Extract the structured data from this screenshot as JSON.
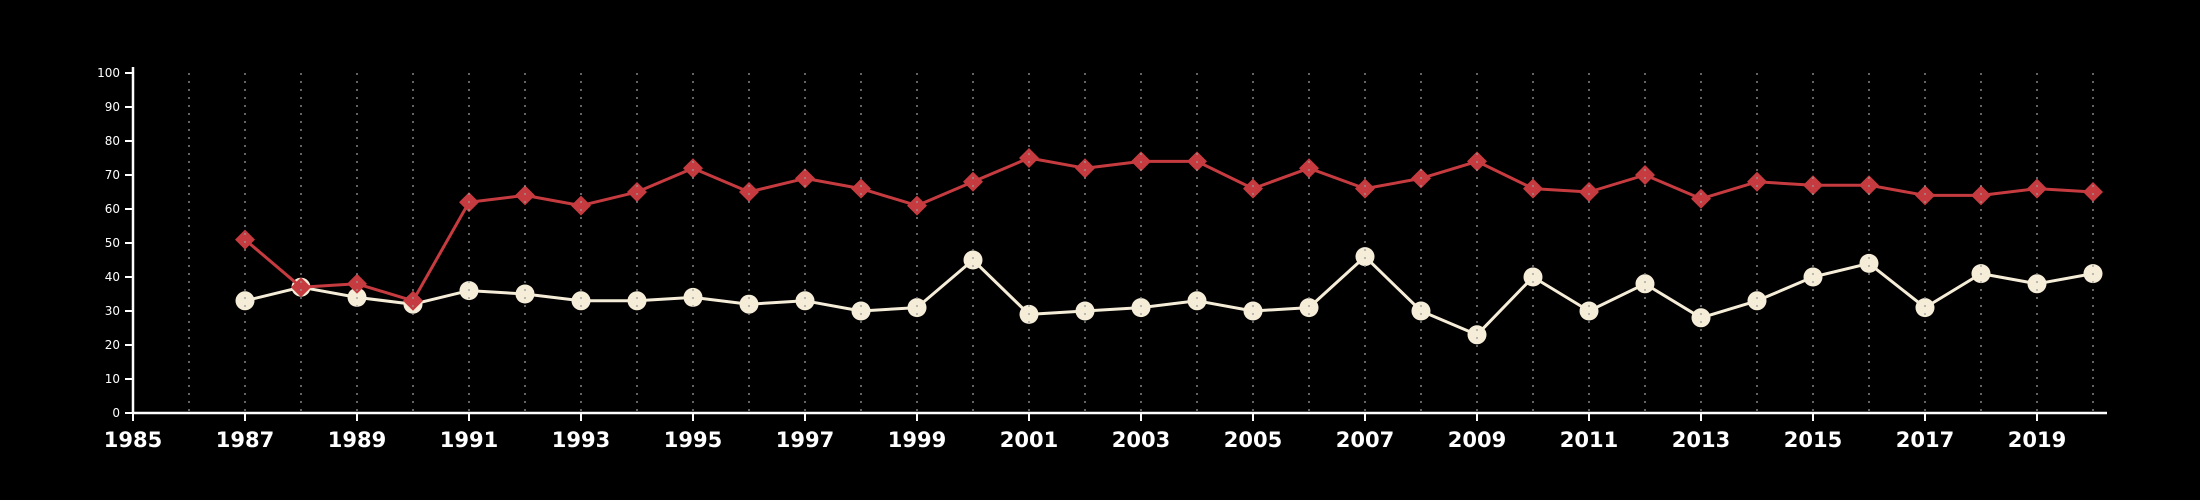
{
  "chart_data": {
    "type": "line",
    "title": "",
    "xlabel": "",
    "ylabel": "",
    "x_years": [
      1987,
      1988,
      1989,
      1990,
      1991,
      1992,
      1993,
      1994,
      1995,
      1996,
      1997,
      1998,
      1999,
      2000,
      2001,
      2002,
      2003,
      2004,
      2005,
      2006,
      2007,
      2008,
      2009,
      2010,
      2011,
      2012,
      2013,
      2014,
      2015,
      2016,
      2017,
      2018,
      2019,
      2020
    ],
    "series": [
      {
        "name": "red-diamond-series",
        "marker": "diamond",
        "color": "#c63b3f",
        "values": [
          51,
          37,
          38,
          33,
          62,
          64,
          61,
          65,
          72,
          65,
          69,
          66,
          61,
          68,
          75,
          72,
          74,
          74,
          66,
          72,
          66,
          69,
          74,
          66,
          65,
          70,
          63,
          68,
          67,
          67,
          64,
          64,
          66,
          65
        ]
      },
      {
        "name": "cream-circle-series",
        "marker": "circle",
        "color": "#f6edd8",
        "values": [
          33,
          37,
          34,
          32,
          36,
          35,
          33,
          33,
          34,
          32,
          33,
          30,
          31,
          45,
          29,
          30,
          31,
          33,
          30,
          31,
          46,
          30,
          23,
          40,
          30,
          38,
          28,
          33,
          40,
          44,
          31,
          41,
          38,
          41
        ]
      }
    ],
    "xlim": [
      1985,
      2020
    ],
    "ylim": [
      0,
      100
    ],
    "yticks": [
      0,
      10,
      20,
      30,
      40,
      50,
      60,
      70,
      80,
      90,
      100
    ],
    "xtick_label_years": [
      1985,
      1987,
      1989,
      1991,
      1993,
      1995,
      1997,
      1999,
      2001,
      2003,
      2005,
      2007,
      2009,
      2011,
      2013,
      2015,
      2017,
      2019
    ],
    "grid": {
      "orientation": "vertical",
      "style": "dotted",
      "every_year": true,
      "color": "#9b9b9b"
    },
    "legend": "none",
    "colors": {
      "background": "#000000",
      "axis": "#ffffff",
      "tick_label": "#ffffff"
    }
  }
}
